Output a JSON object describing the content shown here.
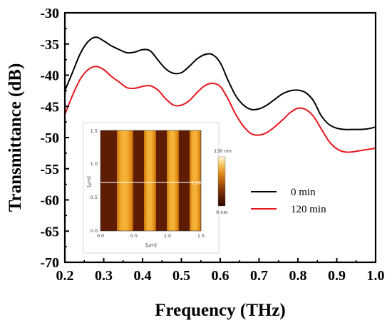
{
  "chart_data": {
    "type": "line",
    "xlabel": "Frequency (THz)",
    "ylabel": "Transmittance (dB)",
    "xlim": [
      0.2,
      1.0
    ],
    "ylim": [
      -70,
      -30
    ],
    "xticks": [
      "0.2",
      "0.3",
      "0.4",
      "0.5",
      "0.6",
      "0.7",
      "0.8",
      "0.9",
      "1.0"
    ],
    "yticks": [
      "-30",
      "-35",
      "-40",
      "-45",
      "-50",
      "-55",
      "-60",
      "-65",
      "-70"
    ],
    "grid": false,
    "legend_position": "right",
    "series": [
      {
        "name": "0 min",
        "color": "#000000",
        "x": [
          0.2,
          0.22,
          0.24,
          0.26,
          0.28,
          0.3,
          0.32,
          0.34,
          0.36,
          0.38,
          0.4,
          0.42,
          0.44,
          0.46,
          0.48,
          0.5,
          0.52,
          0.54,
          0.56,
          0.58,
          0.6,
          0.62,
          0.64,
          0.66,
          0.68,
          0.7,
          0.72,
          0.74,
          0.76,
          0.78,
          0.8,
          0.82,
          0.84,
          0.86,
          0.88,
          0.9,
          0.92,
          0.94,
          0.96,
          0.98,
          1.0
        ],
        "values": [
          -42.5,
          -39.5,
          -36.5,
          -34.6,
          -33.9,
          -34.5,
          -35.3,
          -35.9,
          -36.4,
          -36.3,
          -35.9,
          -36.1,
          -37.6,
          -39.0,
          -39.7,
          -39.6,
          -38.6,
          -37.4,
          -36.7,
          -36.7,
          -38.0,
          -40.8,
          -43.3,
          -44.8,
          -45.5,
          -45.4,
          -44.8,
          -43.9,
          -43.0,
          -42.5,
          -42.4,
          -42.8,
          -44.1,
          -46.5,
          -47.9,
          -48.5,
          -48.7,
          -48.7,
          -48.7,
          -48.6,
          -48.3
        ]
      },
      {
        "name": "120 min",
        "color": "#e8141b",
        "x": [
          0.2,
          0.22,
          0.24,
          0.26,
          0.28,
          0.3,
          0.32,
          0.34,
          0.36,
          0.38,
          0.4,
          0.42,
          0.44,
          0.46,
          0.48,
          0.5,
          0.52,
          0.54,
          0.56,
          0.58,
          0.6,
          0.62,
          0.64,
          0.66,
          0.68,
          0.7,
          0.72,
          0.74,
          0.76,
          0.78,
          0.8,
          0.82,
          0.84,
          0.86,
          0.88,
          0.9,
          0.92,
          0.94,
          0.96,
          0.98,
          1.0
        ],
        "values": [
          -46.3,
          -43.2,
          -40.6,
          -39.1,
          -38.6,
          -39.1,
          -40.2,
          -41.1,
          -42.0,
          -42.1,
          -41.8,
          -41.7,
          -42.4,
          -43.8,
          -44.8,
          -44.8,
          -44.1,
          -42.8,
          -41.7,
          -41.3,
          -41.8,
          -43.8,
          -46.3,
          -48.2,
          -49.4,
          -49.6,
          -49.2,
          -48.3,
          -47.2,
          -46.0,
          -45.3,
          -45.5,
          -46.6,
          -48.6,
          -50.6,
          -51.8,
          -52.3,
          -52.3,
          -52.1,
          -51.9,
          -51.7
        ]
      }
    ]
  },
  "inset": {
    "xticks": [
      "0.0",
      "0.5",
      "1.0",
      "1.5"
    ],
    "yticks": [
      "0.0",
      "0.5",
      "1.0",
      "1.5"
    ],
    "xlabel": "[μm]",
    "ylabel": "[μm]",
    "scale_label": "1.500",
    "colorbar_max": "130 nm",
    "colorbar_min": "0 nm"
  }
}
